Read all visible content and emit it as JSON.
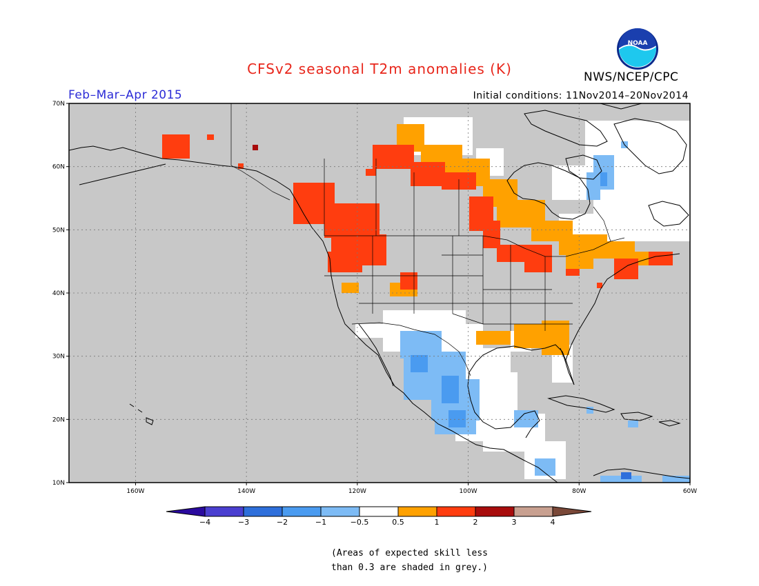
{
  "title": "CFSv2 seasonal T2m anomalies (K)",
  "season": "Feb–Mar–Apr 2015",
  "initial_conditions": "Initial conditions: 11Nov2014–20Nov2014",
  "agency": "NWS/NCEP/CPC",
  "logo_text": "NOAA",
  "note_line1": "(Areas of expected skill less",
  "note_line2": "than 0.3 are shaded in grey.)",
  "map": {
    "lon_range": [
      -172,
      -60
    ],
    "lat_range": [
      10,
      70
    ],
    "lon_ticks": [
      "160W",
      "140W",
      "120W",
      "100W",
      "80W",
      "60W"
    ],
    "lat_ticks": [
      "70N",
      "60N",
      "50N",
      "40N",
      "30N",
      "20N",
      "10N"
    ],
    "gridlines": true,
    "land_color": "#c8c8c8"
  },
  "colorbar": {
    "labels": [
      "−4",
      "−3",
      "−2",
      "−1",
      "−0.5",
      "0.5",
      "1",
      "2",
      "3",
      "4"
    ],
    "colors": [
      "#2a0a9e",
      "#4a3fd0",
      "#2e6fdb",
      "#4a9bf0",
      "#7dbbf5",
      "#ffffff",
      "#ffa100",
      "#ff3d0f",
      "#a80c0c",
      "#c8a090",
      "#7a4838"
    ]
  }
}
